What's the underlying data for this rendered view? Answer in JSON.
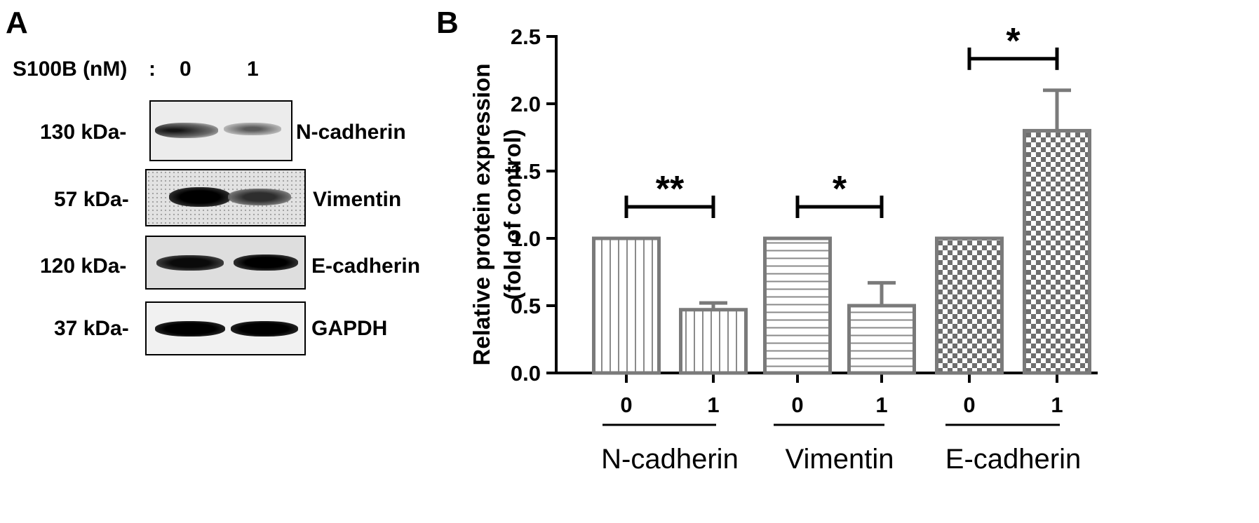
{
  "panel_a": {
    "letter": "A",
    "treatment_label": "S100B (nM)",
    "treatment_sep": ":",
    "lanes": [
      "0",
      "1"
    ],
    "blots": [
      {
        "marker": "130 kDa-",
        "protein": "N-cadherin"
      },
      {
        "marker": "57 kDa-",
        "protein": "Vimentin"
      },
      {
        "marker": "120 kDa-",
        "protein": "E-cadherin"
      },
      {
        "marker": "37 kDa-",
        "protein": "GAPDH"
      }
    ]
  },
  "panel_b": {
    "letter": "B"
  },
  "chart_data": {
    "type": "bar",
    "ylabel_line1": "Relative protein expression",
    "ylabel_line2": "(fold of control)",
    "ylim": [
      0,
      2.5
    ],
    "yticks": [
      "0.0",
      "0.5",
      "1.0",
      "1.5",
      "2.0",
      "2.5"
    ],
    "groups": [
      {
        "name": "N-cadherin",
        "categories": [
          "0",
          "1"
        ],
        "values": [
          1.0,
          0.47
        ],
        "errors": [
          0,
          0.05
        ],
        "pattern": "vertical",
        "significance": "**"
      },
      {
        "name": "Vimentin",
        "categories": [
          "0",
          "1"
        ],
        "values": [
          1.0,
          0.5
        ],
        "errors": [
          0,
          0.17
        ],
        "pattern": "horizontal",
        "significance": "*"
      },
      {
        "name": "E-cadherin",
        "categories": [
          "0",
          "1"
        ],
        "values": [
          1.0,
          1.8
        ],
        "errors": [
          0,
          0.3
        ],
        "pattern": "checker",
        "significance": "*"
      }
    ],
    "colors": {
      "bar_stroke": "#7a7a7a",
      "bar_fill": "#ffffff",
      "pattern": "#8a8a8a"
    }
  }
}
